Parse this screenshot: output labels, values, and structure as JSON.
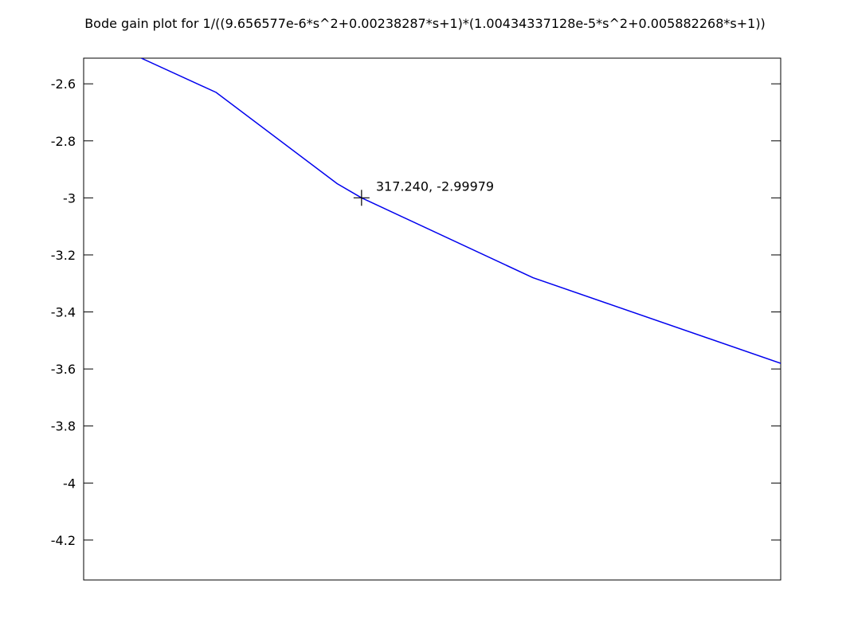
{
  "chart_data": {
    "type": "line",
    "title": "Bode gain plot for 1/((9.656577e-6*s^2+0.00238287*s+1)*(1.00434337128e-5*s^2+0.005882268*s+1))",
    "xlabel": "",
    "ylabel": "",
    "xlim": [
      269.0,
      390.0
    ],
    "ylim": [
      -4.34,
      -2.51
    ],
    "yticks": [
      -2.6,
      -2.8,
      -3,
      -3.2,
      -3.4,
      -3.6,
      -3.8,
      -4,
      -4.2
    ],
    "ytick_labels": [
      "-2.6",
      "-2.8",
      "-3",
      "-3.2",
      "-3.4",
      "-3.6",
      "-3.8",
      "-4",
      "-4.2"
    ],
    "grid": false,
    "legend": "none",
    "series": [
      {
        "color": "#0000ee",
        "x": [
          279.0,
          292.0,
          313.0,
          317.24,
          347.0,
          390.0
        ],
        "y": [
          -2.51,
          -2.63,
          -2.95,
          -2.99979,
          -3.28,
          -3.58
        ]
      }
    ],
    "annotations": [
      {
        "label": "317.240, -2.99979",
        "x": 317.24,
        "y": -2.99979,
        "marker": "crosshair"
      }
    ]
  }
}
